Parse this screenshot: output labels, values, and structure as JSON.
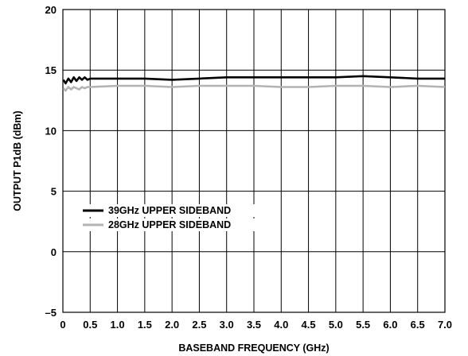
{
  "chart_data": {
    "type": "line",
    "xlabel": "BASEBAND FREQUENCY (GHz)",
    "ylabel": "OUTPUT P1dB (dBm)",
    "xlim": [
      0,
      7.0
    ],
    "ylim": [
      -5,
      20
    ],
    "xticks": [
      "0",
      "0.5",
      "1.0",
      "1.5",
      "2.0",
      "2.5",
      "3.0",
      "3.5",
      "4.0",
      "4.5",
      "5.0",
      "5.5",
      "6.0",
      "6.5",
      "7.0"
    ],
    "yticks": [
      "–5",
      "0",
      "5",
      "10",
      "15",
      "20"
    ],
    "grid": true,
    "legend_position": "lower-left",
    "series": [
      {
        "name": "39GHz UPPER SIDEBAND",
        "color": "#000000",
        "x": [
          0.01,
          0.05,
          0.1,
          0.15,
          0.2,
          0.25,
          0.3,
          0.35,
          0.4,
          0.45,
          0.5,
          1.0,
          1.5,
          2.0,
          2.5,
          3.0,
          3.5,
          4.0,
          4.5,
          5.0,
          5.5,
          6.0,
          6.5,
          7.0
        ],
        "y": [
          14.2,
          13.9,
          14.3,
          14.0,
          14.4,
          14.1,
          14.4,
          14.2,
          14.4,
          14.2,
          14.3,
          14.3,
          14.3,
          14.2,
          14.3,
          14.4,
          14.4,
          14.4,
          14.4,
          14.4,
          14.5,
          14.4,
          14.3,
          14.3
        ]
      },
      {
        "name": "28GHz UPPER SIDEBAND",
        "color": "#b3b3b3",
        "x": [
          0.01,
          0.05,
          0.1,
          0.15,
          0.2,
          0.25,
          0.3,
          0.35,
          0.4,
          0.45,
          0.5,
          1.0,
          1.5,
          2.0,
          2.5,
          3.0,
          3.5,
          4.0,
          4.5,
          5.0,
          5.5,
          6.0,
          6.5,
          7.0
        ],
        "y": [
          13.5,
          13.3,
          13.6,
          13.4,
          13.6,
          13.5,
          13.4,
          13.6,
          13.5,
          13.6,
          13.6,
          13.7,
          13.7,
          13.6,
          13.7,
          13.7,
          13.7,
          13.6,
          13.6,
          13.7,
          13.7,
          13.6,
          13.7,
          13.6
        ]
      }
    ]
  }
}
